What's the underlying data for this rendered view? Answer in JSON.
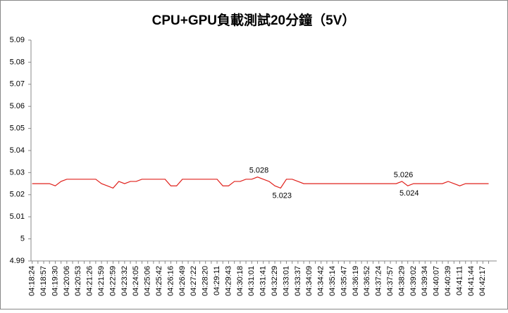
{
  "chart_data": {
    "type": "line",
    "title": "CPU+GPU負載測試20分鐘（5V）",
    "categories": [
      "04:18:24",
      null,
      "04:18:57",
      null,
      "04:19:30",
      null,
      "04:20:06",
      null,
      "04:20:53",
      null,
      "04:21:26",
      null,
      "04:21:59",
      null,
      "04:22:59",
      null,
      "04:23:32",
      null,
      "04:24:05",
      null,
      "04:25:06",
      null,
      "04:25:42",
      null,
      "04:26:16",
      null,
      "04:26:49",
      null,
      "04:27:22",
      null,
      "04:28:20",
      null,
      "04:29:11",
      null,
      "04:29:43",
      null,
      "04:30:18",
      null,
      "04:31:01",
      null,
      "04:31:41",
      null,
      "04:32:29",
      null,
      "04:33:01",
      null,
      "04:33:37",
      null,
      "04:34:09",
      null,
      "04:34:42",
      null,
      "04:35:14",
      null,
      "04:35:47",
      null,
      "04:36:19",
      null,
      "04:36:52",
      null,
      "04:37:24",
      null,
      "04:37:57",
      null,
      "04:38:29",
      null,
      "04:39:02",
      null,
      "04:39:34",
      null,
      "04:40:07",
      null,
      "04:40:39",
      null,
      "04:41:11",
      null,
      "04:41:44",
      null,
      "04:42:17",
      null
    ],
    "series": [
      {
        "color": "#e0201b",
        "values": [
          5.025,
          5.025,
          5.025,
          5.025,
          5.024,
          5.026,
          5.027,
          5.027,
          5.027,
          5.027,
          5.027,
          5.027,
          5.025,
          5.024,
          5.023,
          5.026,
          5.025,
          5.026,
          5.026,
          5.027,
          5.027,
          5.027,
          5.027,
          5.027,
          5.024,
          5.024,
          5.027,
          5.027,
          5.027,
          5.027,
          5.027,
          5.027,
          5.027,
          5.024,
          5.024,
          5.026,
          5.026,
          5.027,
          5.027,
          5.028,
          5.027,
          5.026,
          5.024,
          5.023,
          5.027,
          5.027,
          5.026,
          5.025,
          5.025,
          5.025,
          5.025,
          5.025,
          5.025,
          5.025,
          5.025,
          5.025,
          5.025,
          5.025,
          5.025,
          5.025,
          5.025,
          5.025,
          5.025,
          5.025,
          5.026,
          5.024,
          5.025,
          5.025,
          5.025,
          5.025,
          5.025,
          5.025,
          5.026,
          5.025,
          5.024,
          5.025,
          5.025,
          5.025,
          5.025,
          5.025
        ],
        "value_labels": [
          null,
          null,
          null,
          null,
          null,
          null,
          null,
          null,
          null,
          null,
          null,
          null,
          null,
          null,
          null,
          null,
          null,
          null,
          null,
          null,
          null,
          null,
          null,
          null,
          null,
          null,
          null,
          null,
          null,
          null,
          null,
          null,
          null,
          null,
          null,
          null,
          null,
          null,
          null,
          "5.028",
          null,
          null,
          null,
          "5.023",
          null,
          null,
          null,
          null,
          null,
          null,
          null,
          null,
          null,
          null,
          null,
          null,
          null,
          null,
          null,
          null,
          null,
          null,
          null,
          null,
          "5.026",
          "5.024",
          null,
          null,
          null,
          null,
          null,
          null,
          null,
          null,
          null,
          null,
          null,
          null,
          null,
          null
        ]
      }
    ],
    "ylim": [
      4.99,
      5.09
    ],
    "yticks": [
      4.99,
      5,
      5.01,
      5.02,
      5.03,
      5.04,
      5.05,
      5.06,
      5.07,
      5.08,
      5.09
    ]
  }
}
